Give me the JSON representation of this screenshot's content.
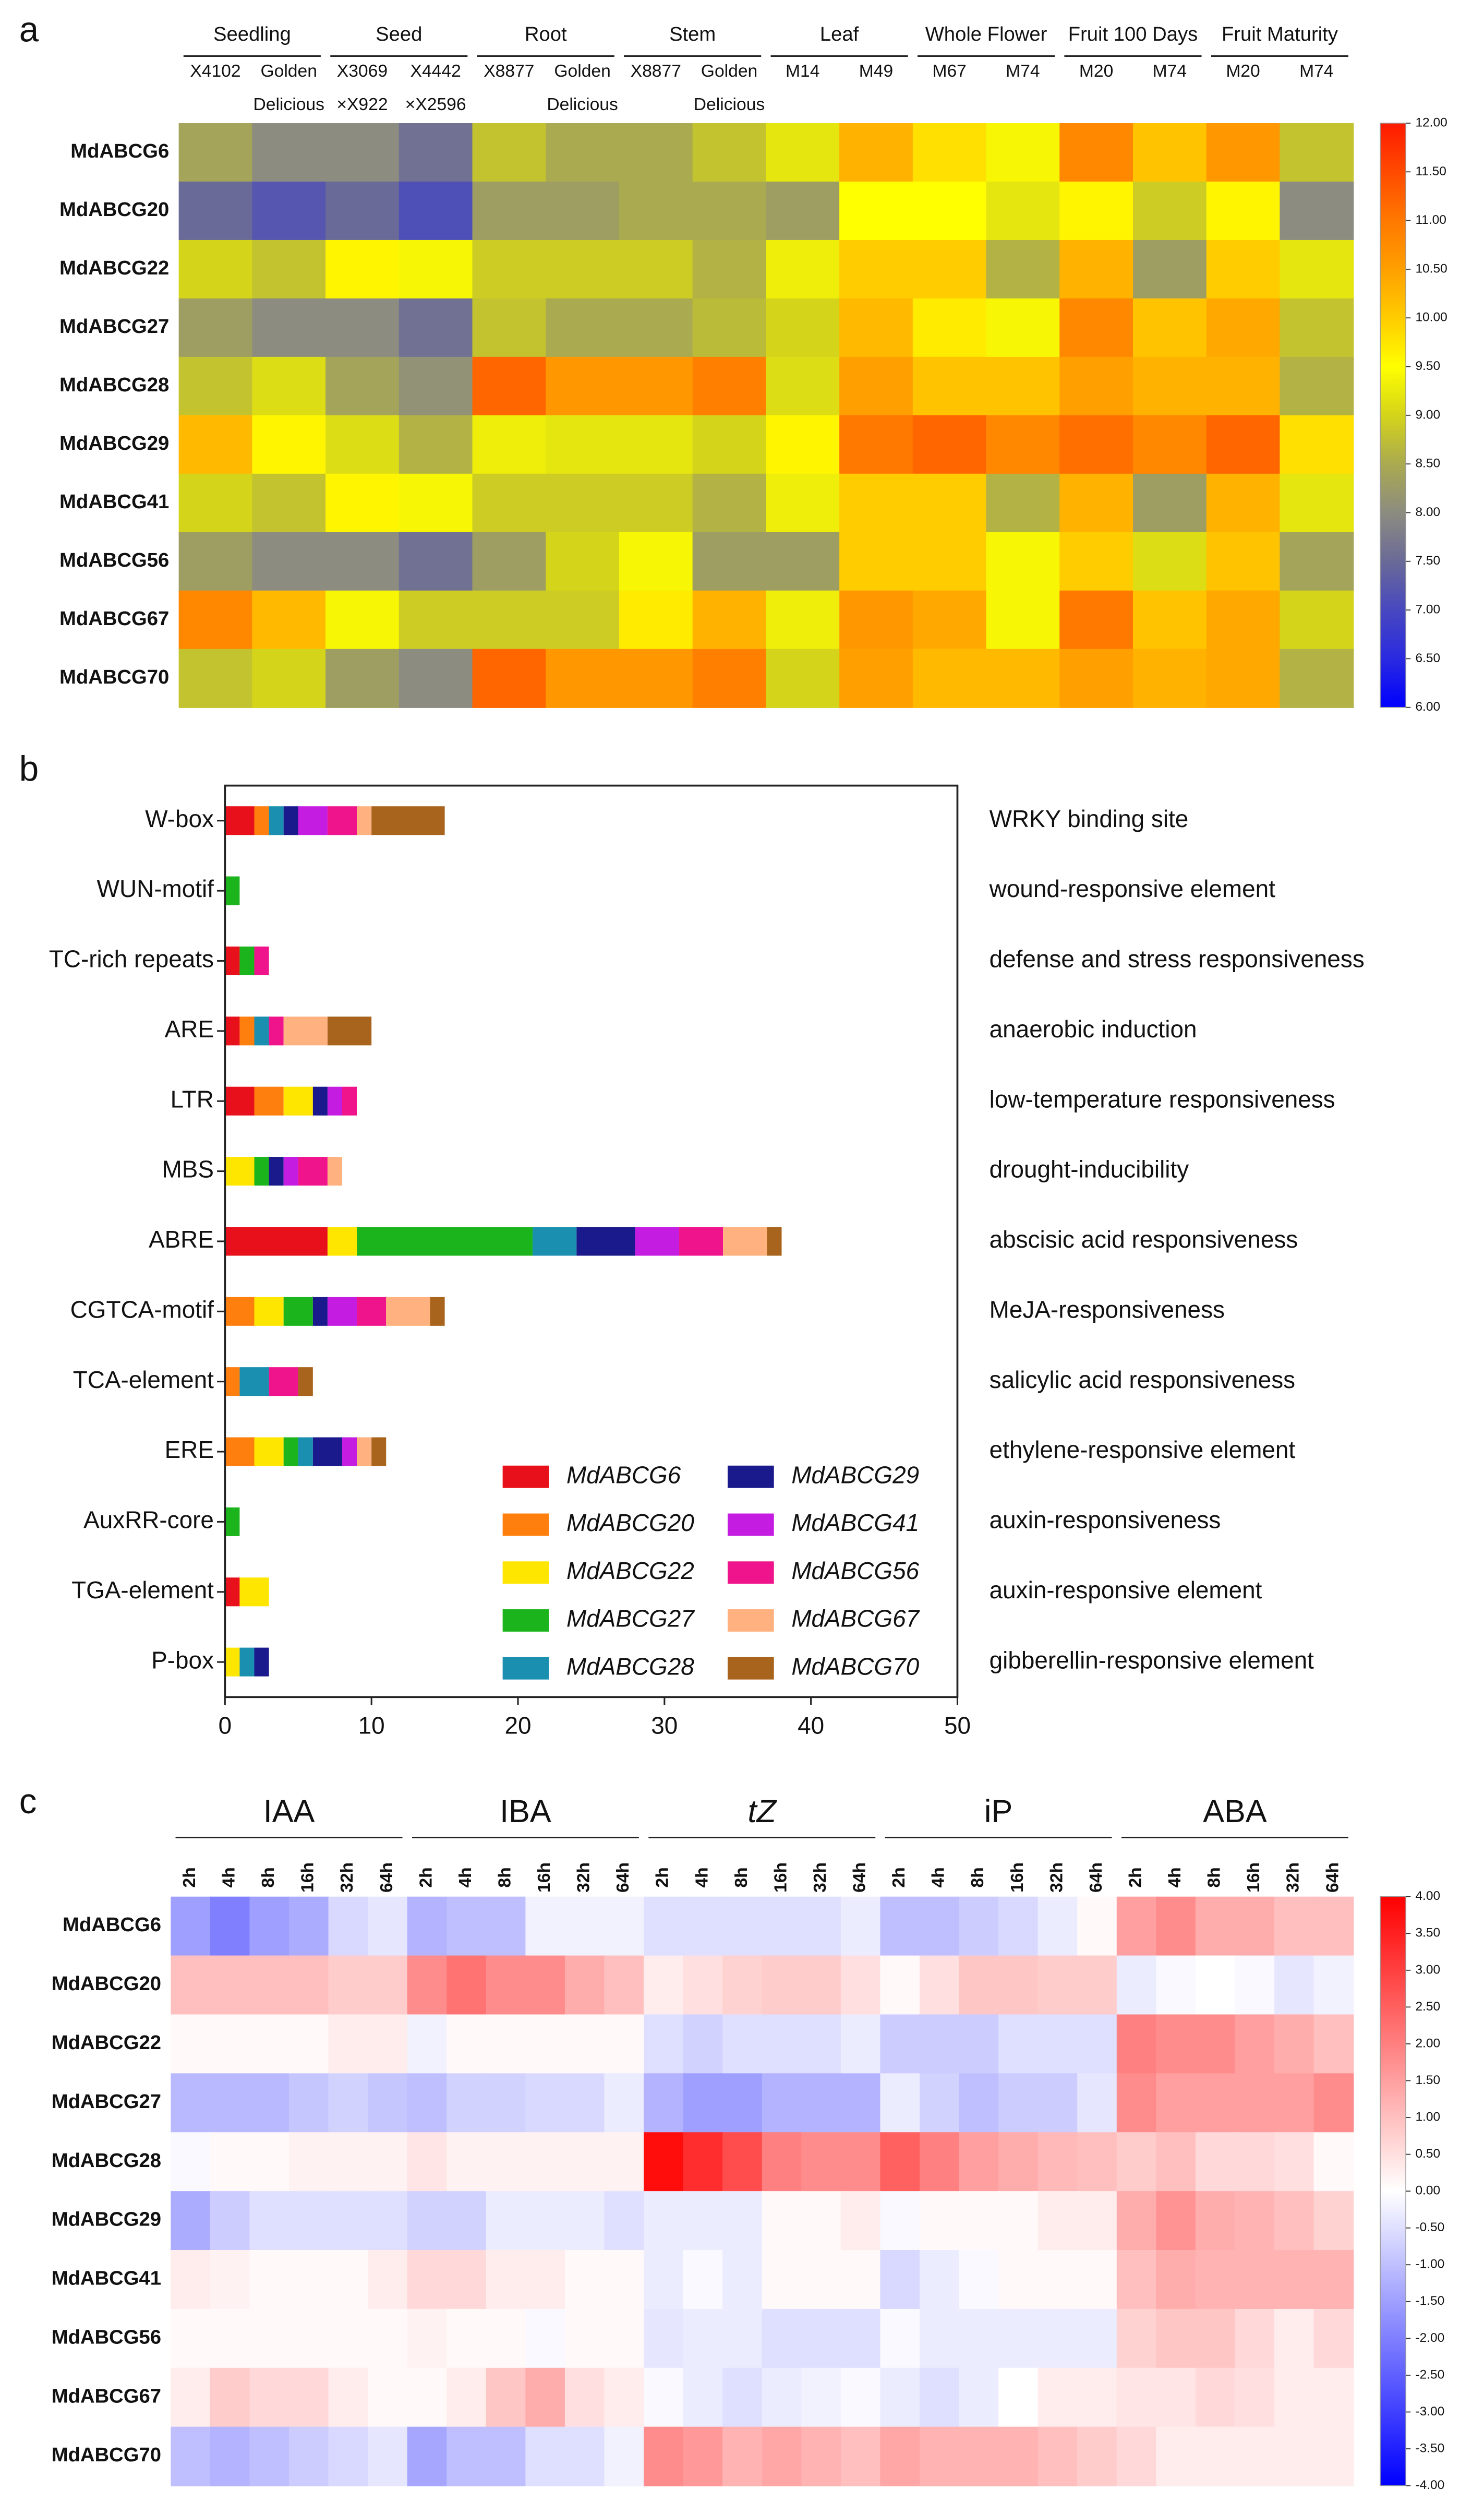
{
  "chart_data": [
    {
      "type": "heatmap",
      "panel_label": "a",
      "groups": [
        "Seedling",
        "Seed",
        "Root",
        "Stem",
        "Leaf",
        "Whole Flower",
        "Fruit 100 Days",
        "Fruit Maturity"
      ],
      "categories": [
        [
          "X4102"
        ],
        [
          "Golden",
          "Delicious"
        ],
        [
          "X3069",
          "×X922"
        ],
        [
          "X4442",
          "×X2596"
        ],
        [
          "X8877"
        ],
        [
          "Golden",
          "Delicious"
        ],
        [
          "X8877"
        ],
        [
          "Golden",
          "Delicious"
        ],
        [
          "M14"
        ],
        [
          "M49"
        ],
        [
          "M67"
        ],
        [
          "M74"
        ],
        [
          "M20"
        ],
        [
          "M74"
        ],
        [
          "M20"
        ],
        [
          "M74"
        ]
      ],
      "rows": [
        "MdABCG6",
        "MdABCG20",
        "MdABCG22",
        "MdABCG27",
        "MdABCG28",
        "MdABCG29",
        "MdABCG41",
        "MdABCG56",
        "MdABCG67",
        "MdABCG70"
      ],
      "values": [
        [
          8.4,
          8.0,
          8.0,
          7.6,
          8.8,
          8.5,
          8.5,
          8.8,
          9.2,
          10.3,
          9.8,
          9.4,
          10.8,
          10.1,
          10.6,
          8.8
        ],
        [
          7.5,
          7.2,
          7.5,
          7.1,
          8.3,
          8.3,
          8.5,
          8.5,
          8.3,
          9.5,
          9.5,
          9.2,
          9.6,
          8.9,
          9.6,
          8.0
        ],
        [
          9.0,
          8.8,
          9.6,
          9.4,
          8.9,
          8.9,
          8.9,
          8.6,
          9.3,
          10.0,
          10.0,
          8.6,
          10.3,
          8.3,
          10.0,
          9.2
        ],
        [
          8.3,
          8.0,
          8.0,
          7.6,
          8.8,
          8.5,
          8.5,
          8.7,
          9.0,
          10.2,
          9.7,
          9.4,
          10.8,
          10.1,
          10.4,
          8.8
        ],
        [
          8.8,
          9.1,
          8.4,
          8.1,
          11.2,
          10.6,
          10.6,
          10.9,
          9.1,
          10.5,
          10.1,
          10.1,
          10.5,
          10.3,
          10.3,
          8.6
        ],
        [
          10.2,
          9.6,
          9.1,
          8.6,
          9.3,
          9.2,
          9.2,
          9.0,
          9.6,
          11.0,
          11.2,
          10.8,
          11.1,
          10.8,
          11.2,
          9.8
        ],
        [
          9.0,
          8.8,
          9.6,
          9.4,
          8.9,
          8.9,
          8.9,
          8.6,
          9.3,
          10.0,
          10.0,
          8.6,
          10.3,
          8.3,
          10.3,
          9.2
        ],
        [
          8.3,
          8.0,
          8.0,
          7.6,
          8.3,
          9.0,
          9.4,
          8.3,
          8.3,
          10.0,
          10.0,
          9.4,
          10.0,
          9.1,
          10.1,
          8.4
        ],
        [
          10.8,
          10.2,
          9.4,
          8.9,
          8.9,
          8.9,
          9.7,
          10.3,
          9.3,
          10.6,
          10.4,
          9.4,
          11.0,
          10.1,
          10.4,
          9.0
        ],
        [
          8.8,
          9.0,
          8.3,
          8.0,
          11.2,
          10.6,
          10.6,
          10.9,
          9.0,
          10.5,
          10.2,
          10.2,
          10.5,
          10.3,
          10.4,
          8.6
        ]
      ],
      "clim": [
        6,
        12
      ],
      "cticks": [
        {
          "value": 6,
          "label": "6.00"
        },
        {
          "value": 6.5,
          "label": "6.50"
        },
        {
          "value": 7,
          "label": "7.00"
        },
        {
          "value": 7.5,
          "label": "7.50"
        },
        {
          "value": 8,
          "label": "8.00"
        },
        {
          "value": 8.5,
          "label": "8.50"
        },
        {
          "value": 9,
          "label": "9.00"
        },
        {
          "value": 9.5,
          "label": "9.50"
        },
        {
          "value": 10,
          "label": "10.00"
        },
        {
          "value": 10.5,
          "label": "10.50"
        },
        {
          "value": 11,
          "label": "11.00"
        },
        {
          "value": 11.5,
          "label": "11.50"
        },
        {
          "value": 12,
          "label": "12.00"
        }
      ],
      "colors": [
        "#0000ff",
        "#2a2ae0",
        "#4848c0",
        "#6a6a98",
        "#8c8c80",
        "#aaaa50",
        "#d4d41a",
        "#ffff00",
        "#ffcc00",
        "#ffa000",
        "#ff7800",
        "#ff4a00",
        "#ff1a00"
      ]
    },
    {
      "type": "bar",
      "orientation": "horizontal",
      "stacked": true,
      "panel_label": "b",
      "categories": [
        "W-box",
        "WUN-motif",
        "TC-rich repeats",
        "ARE",
        "LTR",
        "MBS",
        "ABRE",
        "CGTCA-motif",
        "TCA-element",
        "ERE",
        "AuxRR-core",
        "TGA-element",
        "P-box"
      ],
      "annotations": [
        "WRKY binding site",
        "wound-responsive element",
        "defense and stress responsiveness",
        "anaerobic induction",
        "low-temperature responsiveness",
        "drought-inducibility",
        "abscisic acid responsiveness",
        "MeJA-responsiveness",
        "salicylic acid responsiveness",
        "ethylene-responsive element",
        "auxin-responsiveness",
        "auxin-responsive element",
        "gibberellin-responsive element"
      ],
      "series": [
        {
          "name": "MdABCG6",
          "color": "#e8101a",
          "values": [
            2,
            0,
            1,
            1,
            2,
            0,
            7,
            0,
            0,
            0,
            0,
            1,
            0
          ]
        },
        {
          "name": "MdABCG20",
          "color": "#ff7f0e",
          "values": [
            1,
            0,
            0,
            1,
            2,
            0,
            0,
            2,
            1,
            2,
            0,
            0,
            0
          ]
        },
        {
          "name": "MdABCG22",
          "color": "#ffe600",
          "values": [
            0,
            0,
            0,
            0,
            2,
            2,
            2,
            2,
            0,
            2,
            0,
            2,
            1
          ]
        },
        {
          "name": "MdABCG27",
          "color": "#1cb41c",
          "values": [
            0,
            1,
            1,
            0,
            0,
            1,
            12,
            2,
            0,
            1,
            1,
            0,
            0
          ]
        },
        {
          "name": "MdABCG28",
          "color": "#1a8fb0",
          "values": [
            1,
            0,
            0,
            1,
            0,
            0,
            3,
            0,
            2,
            1,
            0,
            0,
            1
          ]
        },
        {
          "name": "MdABCG29",
          "color": "#1a1a8c",
          "values": [
            1,
            0,
            0,
            0,
            1,
            1,
            4,
            1,
            0,
            2,
            0,
            0,
            1
          ]
        },
        {
          "name": "MdABCG41",
          "color": "#c41ce0",
          "values": [
            2,
            0,
            0,
            0,
            1,
            1,
            3,
            2,
            0,
            1,
            0,
            0,
            0
          ]
        },
        {
          "name": "MdABCG56",
          "color": "#f0148c",
          "values": [
            2,
            0,
            1,
            1,
            1,
            2,
            3,
            2,
            2,
            0,
            0,
            0,
            0
          ]
        },
        {
          "name": "MdABCG67",
          "color": "#ffb27f",
          "values": [
            1,
            0,
            0,
            3,
            0,
            1,
            3,
            3,
            0,
            1,
            0,
            0,
            0
          ]
        },
        {
          "name": "MdABCG70",
          "color": "#a8641c",
          "values": [
            5,
            0,
            0,
            3,
            0,
            0,
            1,
            1,
            1,
            1,
            0,
            0,
            0
          ]
        }
      ],
      "xlim": [
        0,
        50
      ],
      "xticks": [
        0,
        10,
        20,
        30,
        40,
        50
      ],
      "legend": "lower right"
    },
    {
      "type": "heatmap",
      "panel_label": "c",
      "groups": [
        "IAA",
        "IBA",
        "tZ",
        "iP",
        "ABA"
      ],
      "group_italic": [
        false,
        false,
        true,
        false,
        false
      ],
      "categories": [
        "2h",
        "4h",
        "8h",
        "16h",
        "32h",
        "64h",
        "2h",
        "4h",
        "8h",
        "16h",
        "32h",
        "64h",
        "2h",
        "4h",
        "8h",
        "16h",
        "32h",
        "64h",
        "2h",
        "4h",
        "8h",
        "16h",
        "32h",
        "64h",
        "2h",
        "4h",
        "8h",
        "16h",
        "32h",
        "64h"
      ],
      "rows": [
        "MdABCG6",
        "MdABCG20",
        "MdABCG22",
        "MdABCG27",
        "MdABCG28",
        "MdABCG29",
        "MdABCG41",
        "MdABCG56",
        "MdABCG67",
        "MdABCG70"
      ],
      "values": [
        [
          -1.5,
          -2.0,
          -1.5,
          -1.3,
          -0.6,
          -0.4,
          -1.2,
          -1.0,
          -1.0,
          -0.2,
          -0.2,
          -0.2,
          -0.5,
          -0.5,
          -0.5,
          -0.5,
          -0.5,
          -0.3,
          -1.0,
          -1.0,
          -0.8,
          -0.6,
          -0.3,
          0.1,
          1.5,
          1.8,
          1.3,
          1.3,
          1.0,
          1.0
        ],
        [
          1.0,
          1.0,
          1.0,
          1.0,
          0.8,
          0.8,
          1.8,
          2.2,
          1.8,
          1.8,
          1.3,
          1.0,
          0.3,
          0.5,
          0.7,
          0.8,
          0.8,
          0.5,
          0.1,
          0.5,
          0.9,
          0.9,
          0.8,
          0.8,
          -0.3,
          -0.1,
          0,
          -0.1,
          -0.4,
          -0.2
        ],
        [
          0.1,
          0.1,
          0.1,
          0.1,
          0.3,
          0.3,
          -0.2,
          0.1,
          0.1,
          0.1,
          0.1,
          0.1,
          -0.5,
          -0.7,
          -0.5,
          -0.5,
          -0.5,
          -0.3,
          -0.8,
          -0.8,
          -0.8,
          -0.5,
          -0.5,
          -0.5,
          2.0,
          1.8,
          1.8,
          1.5,
          1.3,
          1.0
        ],
        [
          -1.1,
          -1.1,
          -1.1,
          -0.9,
          -0.7,
          -0.9,
          -1.0,
          -0.7,
          -0.7,
          -0.6,
          -0.6,
          -0.3,
          -1.2,
          -1.5,
          -1.5,
          -1.2,
          -1.2,
          -1.2,
          -0.3,
          -0.7,
          -1.0,
          -0.8,
          -0.8,
          -0.4,
          1.8,
          1.5,
          1.5,
          1.5,
          1.5,
          1.8
        ],
        [
          -0.1,
          0.1,
          0.1,
          0.2,
          0.2,
          0.2,
          0.4,
          0.2,
          0.2,
          0.2,
          0.2,
          0.2,
          3.8,
          3.3,
          2.8,
          2.0,
          1.8,
          1.8,
          2.5,
          2.0,
          1.5,
          1.3,
          1.1,
          1.0,
          0.8,
          1.0,
          0.6,
          0.6,
          0.5,
          0.1
        ],
        [
          -1.3,
          -0.8,
          -0.5,
          -0.5,
          -0.5,
          -0.5,
          -0.7,
          -0.7,
          -0.3,
          -0.3,
          -0.3,
          -0.5,
          -0.3,
          -0.3,
          -0.3,
          0.1,
          0.1,
          0.3,
          -0.1,
          0.1,
          0.1,
          0.1,
          0.3,
          0.3,
          1.3,
          1.7,
          1.3,
          1.2,
          1.0,
          0.7
        ],
        [
          0.3,
          0.2,
          0.1,
          0.1,
          0.1,
          0.3,
          0.6,
          0.6,
          0.3,
          0.3,
          0.1,
          0.1,
          -0.3,
          -0.1,
          -0.3,
          0.1,
          0.1,
          0.1,
          -0.6,
          -0.3,
          -0.1,
          0.1,
          0.1,
          0.1,
          1.0,
          1.3,
          1.2,
          1.2,
          1.2,
          1.2
        ],
        [
          0.1,
          0.1,
          0.1,
          0.1,
          0.1,
          0.1,
          0.2,
          0.1,
          0.1,
          -0.1,
          0.1,
          0.1,
          -0.4,
          -0.3,
          -0.3,
          -0.5,
          -0.5,
          -0.5,
          -0.1,
          -0.3,
          -0.3,
          -0.3,
          -0.3,
          -0.3,
          0.7,
          0.9,
          0.9,
          0.6,
          0.3,
          0.6
        ],
        [
          0.3,
          0.8,
          0.6,
          0.6,
          0.3,
          0.1,
          0.1,
          0.3,
          0.9,
          1.3,
          0.5,
          0.3,
          -0.1,
          -0.3,
          -0.5,
          -0.3,
          -0.2,
          -0.1,
          -0.3,
          -0.5,
          -0.3,
          0,
          0.3,
          0.3,
          0.4,
          0.4,
          0.6,
          0.5,
          0.3,
          0.3
        ],
        [
          -1.0,
          -1.2,
          -1.0,
          -0.8,
          -0.6,
          -0.4,
          -1.4,
          -1.0,
          -1.0,
          -0.5,
          -0.5,
          -0.2,
          1.8,
          1.6,
          1.2,
          1.4,
          1.2,
          1.0,
          1.4,
          1.2,
          1.2,
          1.2,
          1.0,
          0.8,
          0.6,
          0.3,
          0.3,
          0.3,
          0.3,
          0.3
        ]
      ],
      "clim": [
        -4,
        4
      ],
      "cticks": [
        {
          "value": -4,
          "label": "-4.00"
        },
        {
          "value": -3.5,
          "label": "-3.50"
        },
        {
          "value": -3,
          "label": "-3.00"
        },
        {
          "value": -2.5,
          "label": "-2.50"
        },
        {
          "value": -2,
          "label": "-2.00"
        },
        {
          "value": -1.5,
          "label": "-1.50"
        },
        {
          "value": -1,
          "label": "-1.00"
        },
        {
          "value": -0.5,
          "label": "-0.50"
        },
        {
          "value": 0,
          "label": "0.00"
        },
        {
          "value": 0.5,
          "label": "0.50"
        },
        {
          "value": 1,
          "label": "1.00"
        },
        {
          "value": 1.5,
          "label": "1.50"
        },
        {
          "value": 2,
          "label": "2.00"
        },
        {
          "value": 2.5,
          "label": "2.50"
        },
        {
          "value": 3,
          "label": "3.00"
        },
        {
          "value": 3.5,
          "label": "3.50"
        },
        {
          "value": 4,
          "label": "4.00"
        }
      ],
      "colors": [
        "#0000ff",
        "#ffffff",
        "#ff0000"
      ]
    }
  ]
}
